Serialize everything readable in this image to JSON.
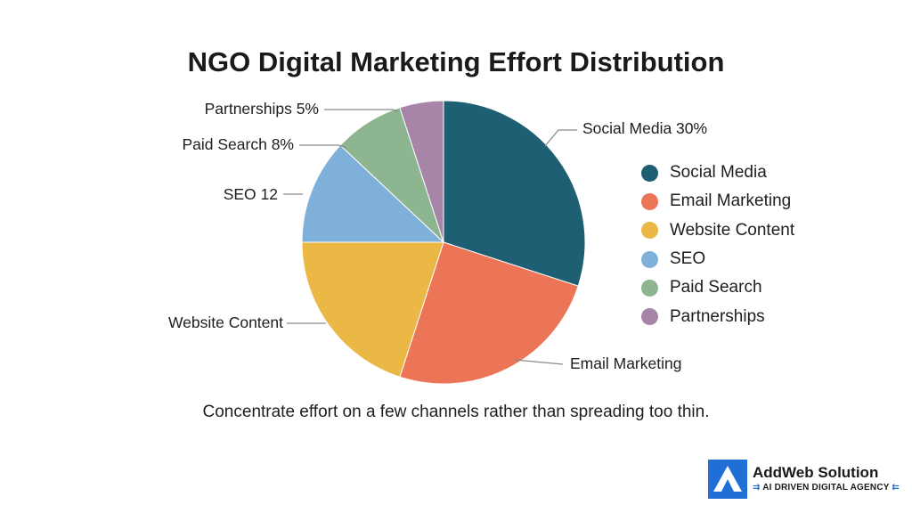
{
  "title": "NGO Digital Marketing Effort Distribution",
  "footnote": "Concentrate effort on a few channels rather than spreading too thin.",
  "chart_data": {
    "type": "pie",
    "title": "NGO Digital Marketing Effort Distribution",
    "slices": [
      {
        "name": "Social Media",
        "value": 30,
        "color": "#1f5f73",
        "label": "Social Media 30%"
      },
      {
        "name": "Email Marketing",
        "value": 25,
        "color": "#ec7558",
        "label": "Email Marketing"
      },
      {
        "name": "Website Content",
        "value": 20,
        "color": "#ecb845",
        "label": "Website Content"
      },
      {
        "name": "SEO",
        "value": 12,
        "color": "#7fb0d9",
        "label": "SEO 12"
      },
      {
        "name": "Paid Search",
        "value": 8,
        "color": "#8db58f",
        "label": "Paid Search 8%"
      },
      {
        "name": "Partnerships",
        "value": 5,
        "color": "#a785a8",
        "label": "Partnerships 5%"
      }
    ],
    "legend": {
      "placement": "right",
      "items": [
        "Social Media",
        "Email Marketing",
        "Website Content",
        "SEO",
        "Paid Search",
        "Partnerships"
      ]
    }
  },
  "brand": {
    "name": "AddWeb Solution",
    "tagline": "AI DRIVEN DIGITAL AGENCY",
    "arrow_left": "⇉",
    "arrow_right": "⇇",
    "logo_color": "#1f6fd6"
  }
}
